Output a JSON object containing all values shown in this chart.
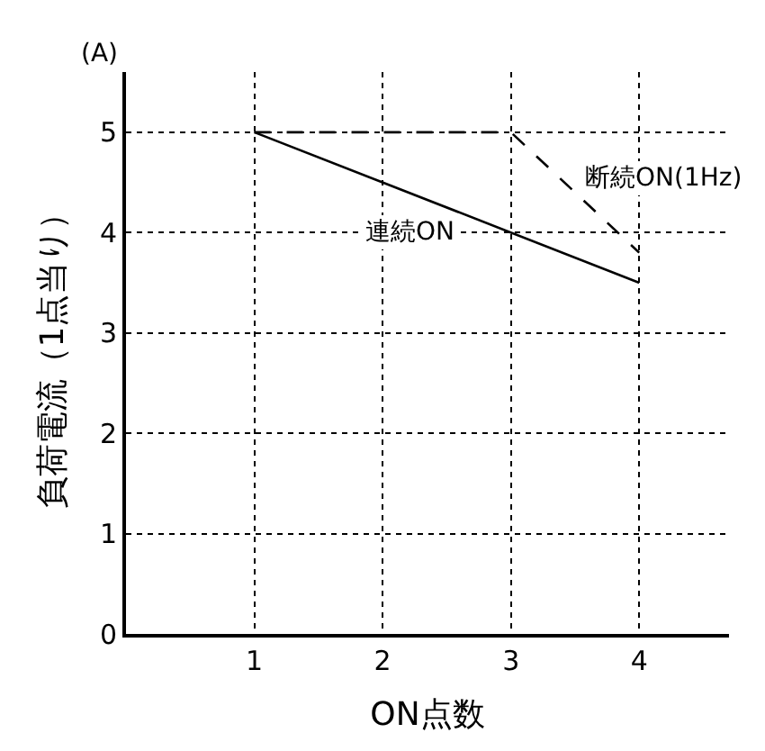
{
  "chart_data": {
    "type": "line",
    "ylabel": "負荷電流（1点当り）",
    "xlabel": "ON点数",
    "annotations": [
      "(A)"
    ],
    "xlim": [
      0,
      4.7
    ],
    "ylim": [
      0,
      5.6
    ],
    "xticks": [
      1,
      2,
      3,
      4
    ],
    "yticks": [
      0,
      1,
      2,
      3,
      4,
      5
    ],
    "grid": true,
    "legend": false,
    "marker": "none",
    "series": [
      {
        "name": "連続ON",
        "color": "#000000",
        "x": [
          1,
          4
        ],
        "values": [
          5,
          3.5
        ],
        "line_style": "solid"
      },
      {
        "name": "断続ON(1Hz)",
        "color": "#000000",
        "x": [
          1,
          3,
          4
        ],
        "values": [
          5,
          5,
          3.8
        ],
        "line_style": "dashed"
      }
    ]
  }
}
